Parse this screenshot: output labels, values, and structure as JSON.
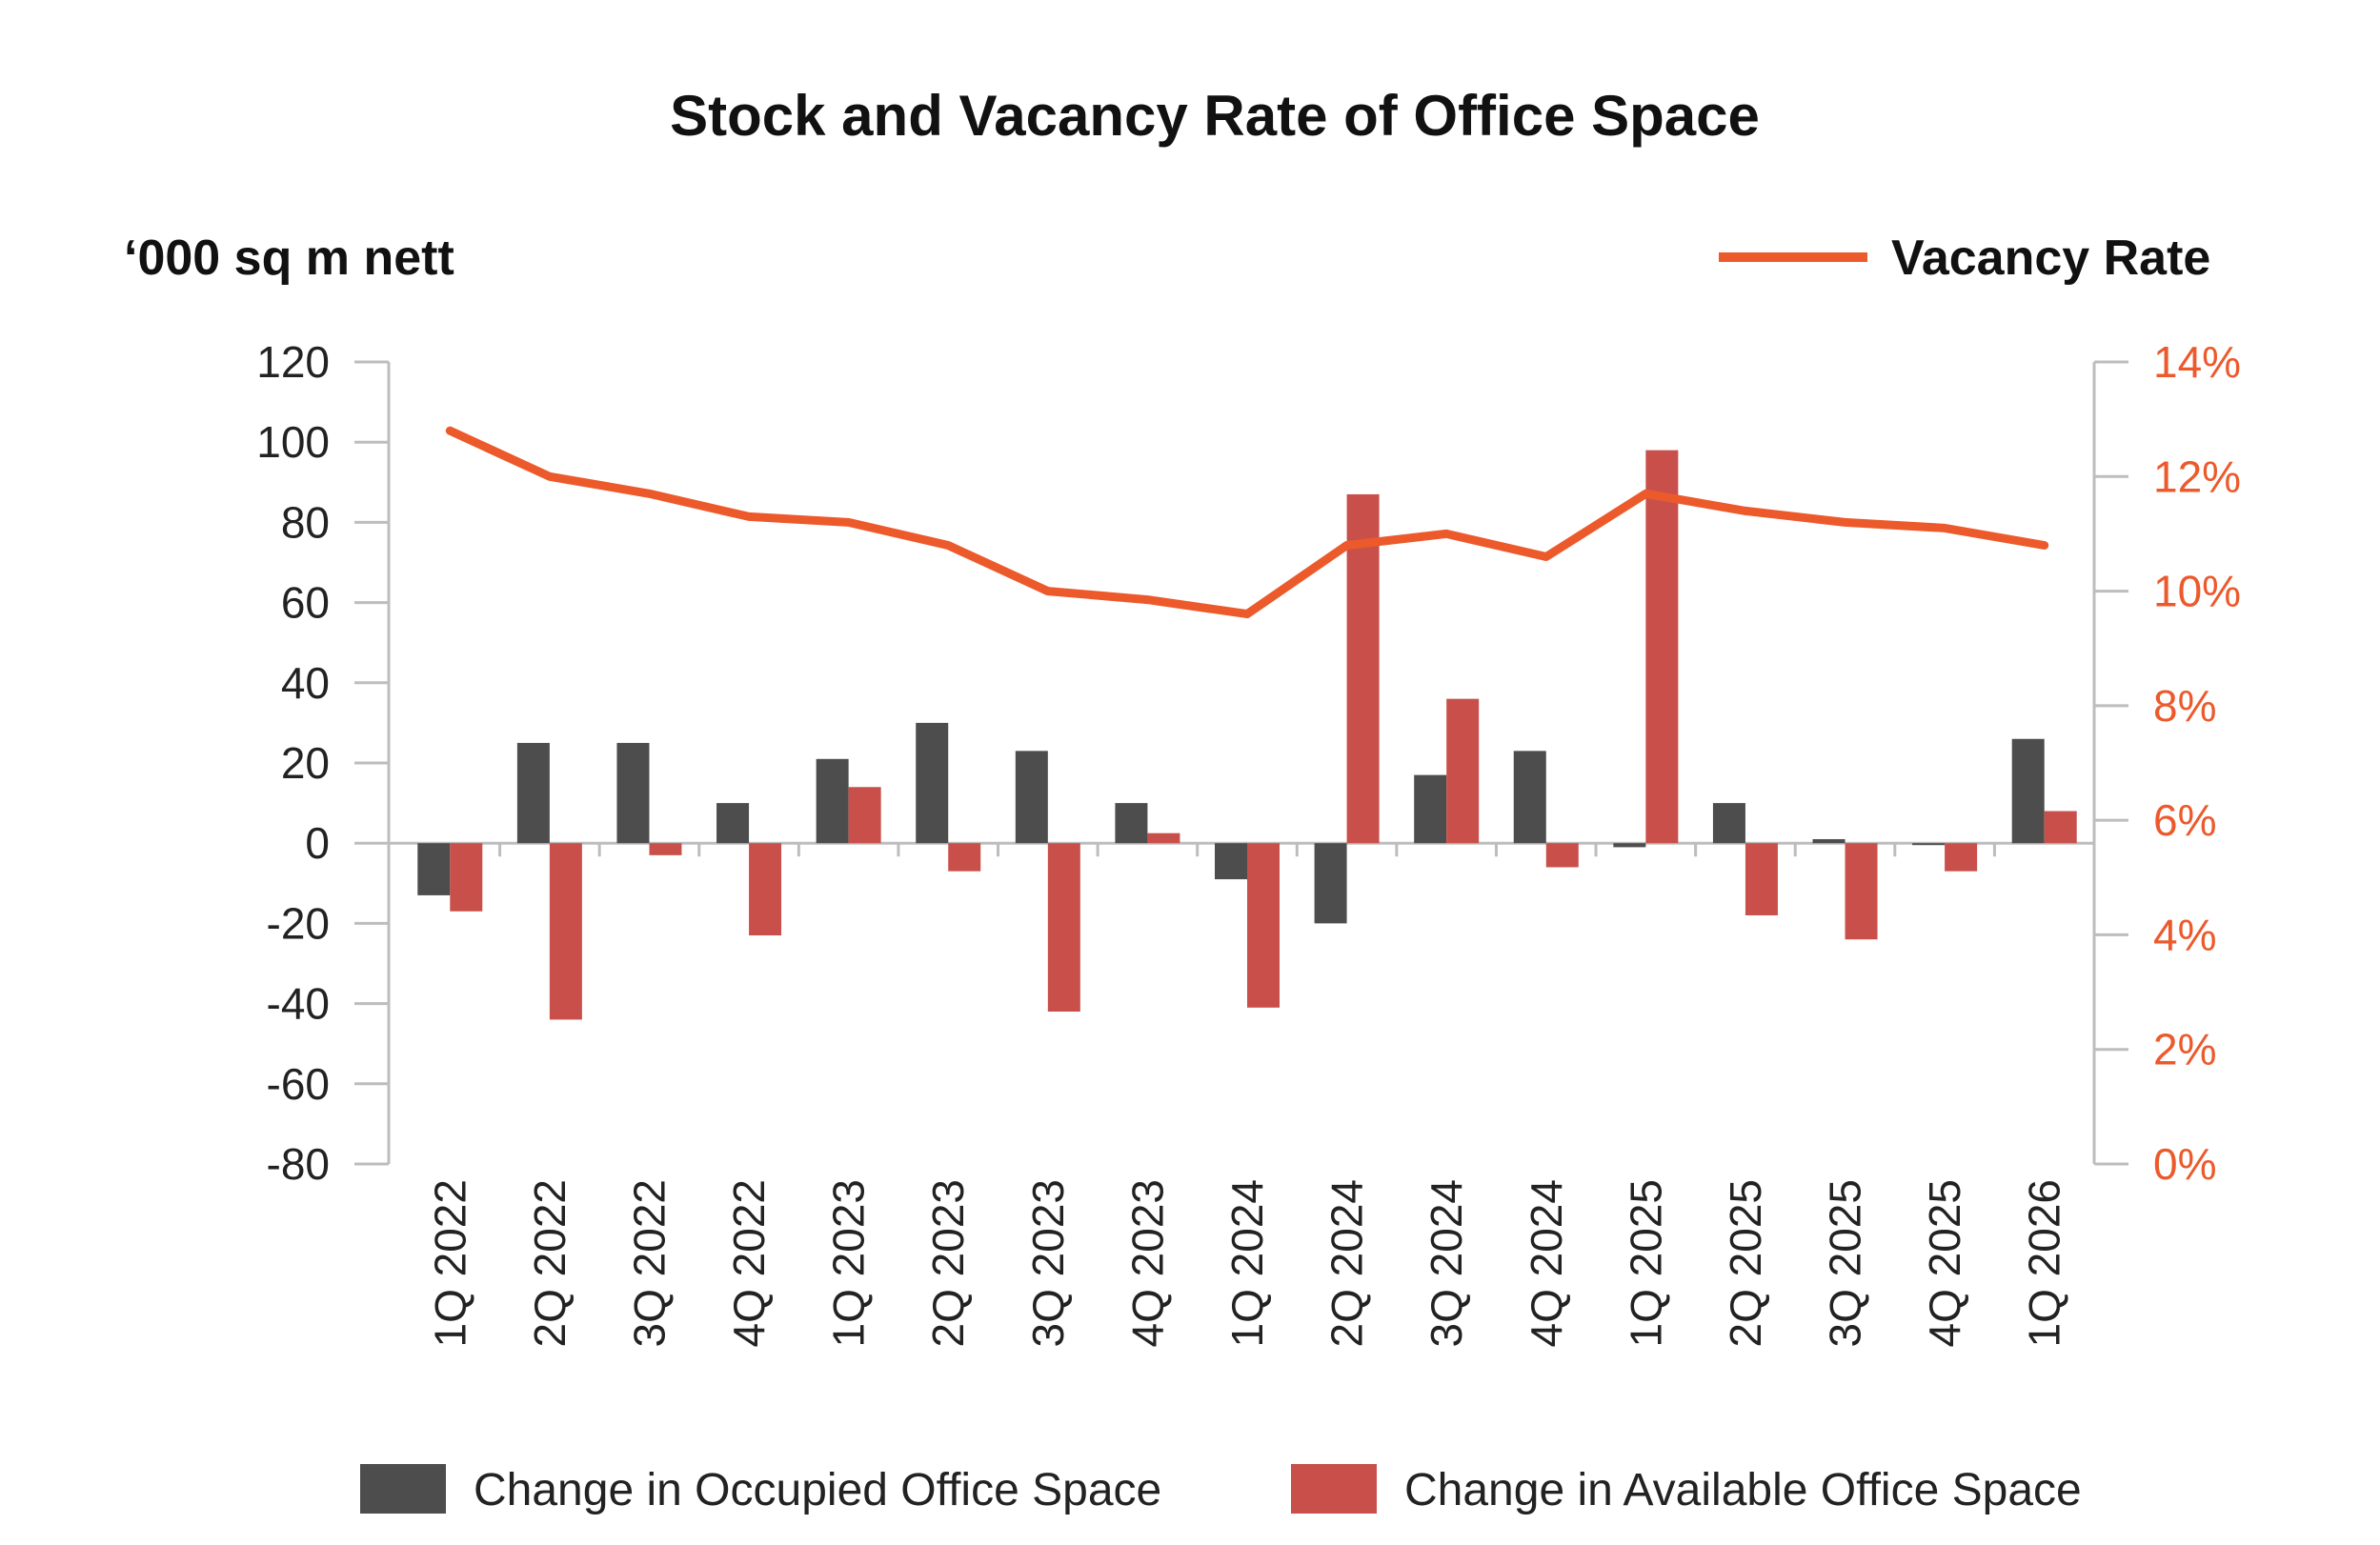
{
  "chart_data": {
    "type": "bar",
    "title": "Stock and Vacancy Rate of Office Space",
    "y_left_label": "‘000 sq m nett",
    "y_left_ticks": [
      "120",
      "100",
      "80",
      "60",
      "40",
      "20",
      "0",
      "-20",
      "-40",
      "-60",
      "-80"
    ],
    "y_right_ticks": [
      "14%",
      "12%",
      "10%",
      "8%",
      "6%",
      "4%",
      "2%",
      "0%"
    ],
    "ylim_left": [
      -80,
      120
    ],
    "ylim_right": [
      0,
      14
    ],
    "categories": [
      "1Q 2022",
      "2Q 2022",
      "3Q 2022",
      "4Q 2022",
      "1Q 2023",
      "2Q 2023",
      "3Q 2023",
      "4Q 2023",
      "1Q 2024",
      "2Q 2024",
      "3Q 2024",
      "4Q 2024",
      "1Q 2025",
      "2Q 2025",
      "3Q 2025",
      "4Q 2025",
      "1Q 2026"
    ],
    "series": [
      {
        "name": "Change in Occupied Office Space",
        "type": "bar",
        "axis": "left",
        "color": "#4d4d4d",
        "values": [
          -13,
          25,
          25,
          10,
          21,
          30,
          23,
          10,
          -9,
          -20,
          17,
          23,
          -1,
          10,
          1,
          0,
          26
        ]
      },
      {
        "name": "Change in Available Office Space",
        "type": "bar",
        "axis": "left",
        "color": "#c9504a",
        "values": [
          -17,
          -44,
          -3,
          -23,
          14,
          -7,
          -42,
          2.5,
          -41,
          87,
          36,
          -6,
          98,
          -18,
          -24,
          -7,
          8
        ]
      },
      {
        "name": "Vacancy Rate",
        "type": "line",
        "axis": "right",
        "color": "#ec5a2c",
        "values": [
          12.8,
          12.0,
          11.7,
          11.3,
          11.2,
          10.8,
          10.0,
          9.85,
          9.6,
          10.8,
          11.0,
          10.6,
          11.7,
          11.4,
          11.2,
          11.1,
          10.8
        ]
      }
    ],
    "legend_top": "Vacancy Rate",
    "grid": false,
    "axis_color": "#bdbdbd"
  }
}
